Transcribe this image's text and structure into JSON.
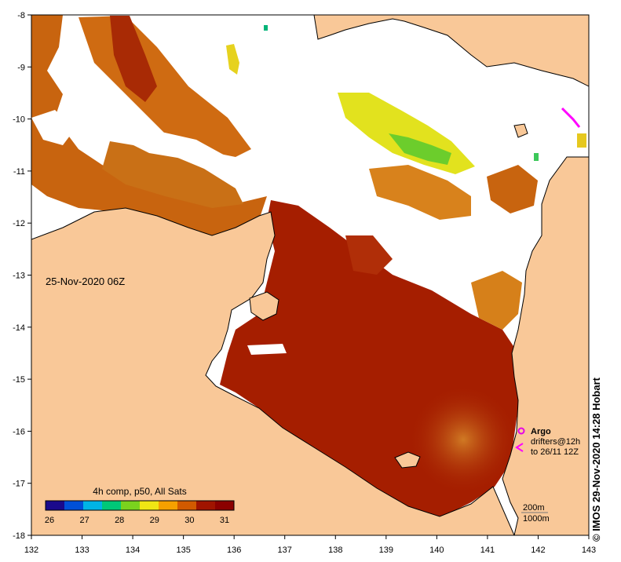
{
  "timestamp": "25-Nov-2020 06Z",
  "credit": "©  IMOS 29-Nov-2020 14:28 Hobart",
  "colorbar": {
    "title": "4h comp, p50, All Sats",
    "ticks": [
      "26",
      "27",
      "28",
      "29",
      "30",
      "31"
    ],
    "colors": [
      "#1a0a8c",
      "#0050d8",
      "#00b4e6",
      "#00c878",
      "#7ad21e",
      "#f0e614",
      "#f5a000",
      "#d25a00",
      "#a01400",
      "#8b0000"
    ]
  },
  "legend": {
    "argo": "Argo",
    "drifters_1": "drifters@12h",
    "drifters_2": "to 26/11 12Z",
    "argo_color": "#e600e6"
  },
  "depth_legend": {
    "line1": "200m",
    "line2": "1000m"
  },
  "axes": {
    "x_ticks": [
      "132",
      "133",
      "134",
      "135",
      "136",
      "137",
      "138",
      "139",
      "140",
      "141",
      "142",
      "143"
    ],
    "y_ticks": [
      "-8",
      "-9",
      "-10",
      "-11",
      "-12",
      "-13",
      "-14",
      "-15",
      "-16",
      "-17",
      "-18"
    ]
  },
  "colors": {
    "land": "#f9c898",
    "sst_hot": "#a51e00",
    "sst_warm": "#c85a0a",
    "sst_mid": "#e08c14",
    "sst_cool": "#e6e61e",
    "sst_green": "#46c846",
    "drifter": "#ff00ff"
  }
}
